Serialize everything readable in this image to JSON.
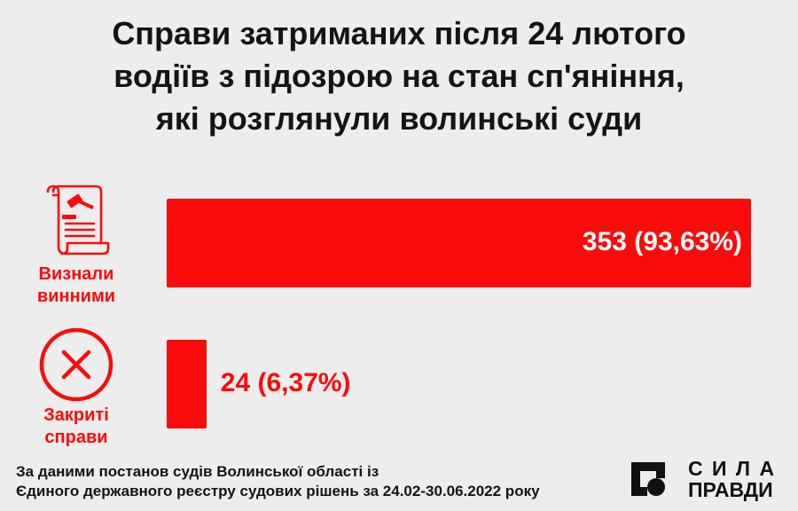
{
  "title_lines": [
    "Справи затриманих після 24 лютого",
    "водіїв з підозрою на стан сп'яніння,",
    "які розглянули волинські суди"
  ],
  "chart_data": {
    "type": "bar",
    "orientation": "horizontal",
    "categories": [
      "Визнали винними",
      "Закриті справи"
    ],
    "category_lines": [
      [
        "Визнали",
        "винними"
      ],
      [
        "Закриті",
        "справи"
      ]
    ],
    "values": [
      353,
      24
    ],
    "value_labels": [
      "353 (93,63%)",
      "24 (6,37%)"
    ],
    "icons": [
      "court-document-gavel-icon",
      "cross-circle-icon"
    ],
    "color": "#fa0b0b",
    "title": "Справи затриманих після 24 лютого водіїв з підозрою на стан сп'яніння, які розглянули волинські суди",
    "xlabel": "",
    "ylabel": "",
    "grid": false
  },
  "footer": {
    "line1": "За даними постанов судів Волинської області із",
    "line2": "Єдиного державного реєстру судових рішень за 24.02-30.06.2022 року"
  },
  "logo": {
    "word1": "С И Л А",
    "word2": "ПРАВДИ",
    "icon": "sila-pravdy-logo-icon"
  }
}
